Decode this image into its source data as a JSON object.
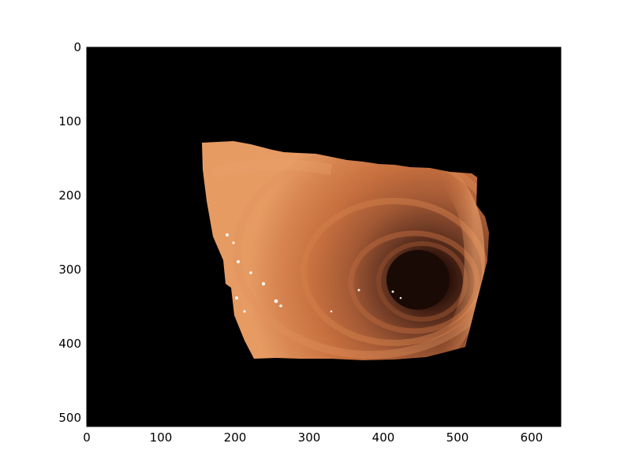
{
  "figure": {
    "background": "#000000",
    "tissue_colors": [
      "#d9834e",
      "#c8703f",
      "#8a4a2c",
      "#3a1a10",
      "#f0a070"
    ]
  },
  "axes": {
    "x_ticks": [
      "0",
      "100",
      "200",
      "300",
      "400",
      "500",
      "600"
    ],
    "y_ticks": [
      "0",
      "100",
      "200",
      "300",
      "400",
      "500"
    ],
    "xlim": [
      0,
      640
    ],
    "ylim": [
      512,
      0
    ]
  }
}
